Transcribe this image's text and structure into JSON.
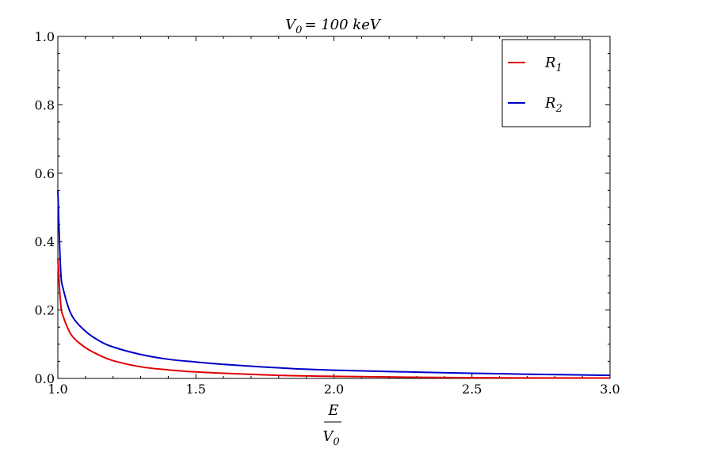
{
  "chart_data": {
    "type": "line",
    "title": {
      "base": "V",
      "sub": "0",
      "rest": "= 100 keV"
    },
    "xlabel": {
      "numerator": "E",
      "denominator": {
        "base": "V",
        "sub": "0"
      }
    },
    "ylabel": "",
    "xlim": [
      1.0,
      3.0
    ],
    "ylim": [
      0.0,
      1.0
    ],
    "x_ticks": [
      "1.0",
      "1.5",
      "2.0",
      "2.5",
      "3.0"
    ],
    "y_ticks": [
      "0.0",
      "0.2",
      "0.4",
      "0.6",
      "0.8",
      "1.0"
    ],
    "grid": false,
    "legend_position": "top-right",
    "series": [
      {
        "name": "R1",
        "name_base": "R",
        "name_sub": "1",
        "color": "#e00000",
        "x": [
          1.0,
          1.01,
          1.02,
          1.05,
          1.1,
          1.15,
          1.2,
          1.3,
          1.4,
          1.5,
          1.6,
          1.8,
          2.0,
          2.5,
          3.0
        ],
        "y": [
          0.35,
          0.22,
          0.18,
          0.126,
          0.09,
          0.068,
          0.052,
          0.034,
          0.025,
          0.019,
          0.015,
          0.009,
          0.006,
          0.002,
          0.001
        ]
      },
      {
        "name": "R2",
        "name_base": "R",
        "name_sub": "2",
        "color": "#0000c8",
        "x": [
          1.0,
          1.01,
          1.02,
          1.05,
          1.1,
          1.15,
          1.2,
          1.3,
          1.4,
          1.5,
          1.6,
          1.8,
          2.0,
          2.5,
          3.0
        ],
        "y": [
          0.55,
          0.32,
          0.26,
          0.185,
          0.138,
          0.11,
          0.092,
          0.07,
          0.056,
          0.048,
          0.041,
          0.031,
          0.024,
          0.015,
          0.009
        ]
      }
    ]
  }
}
